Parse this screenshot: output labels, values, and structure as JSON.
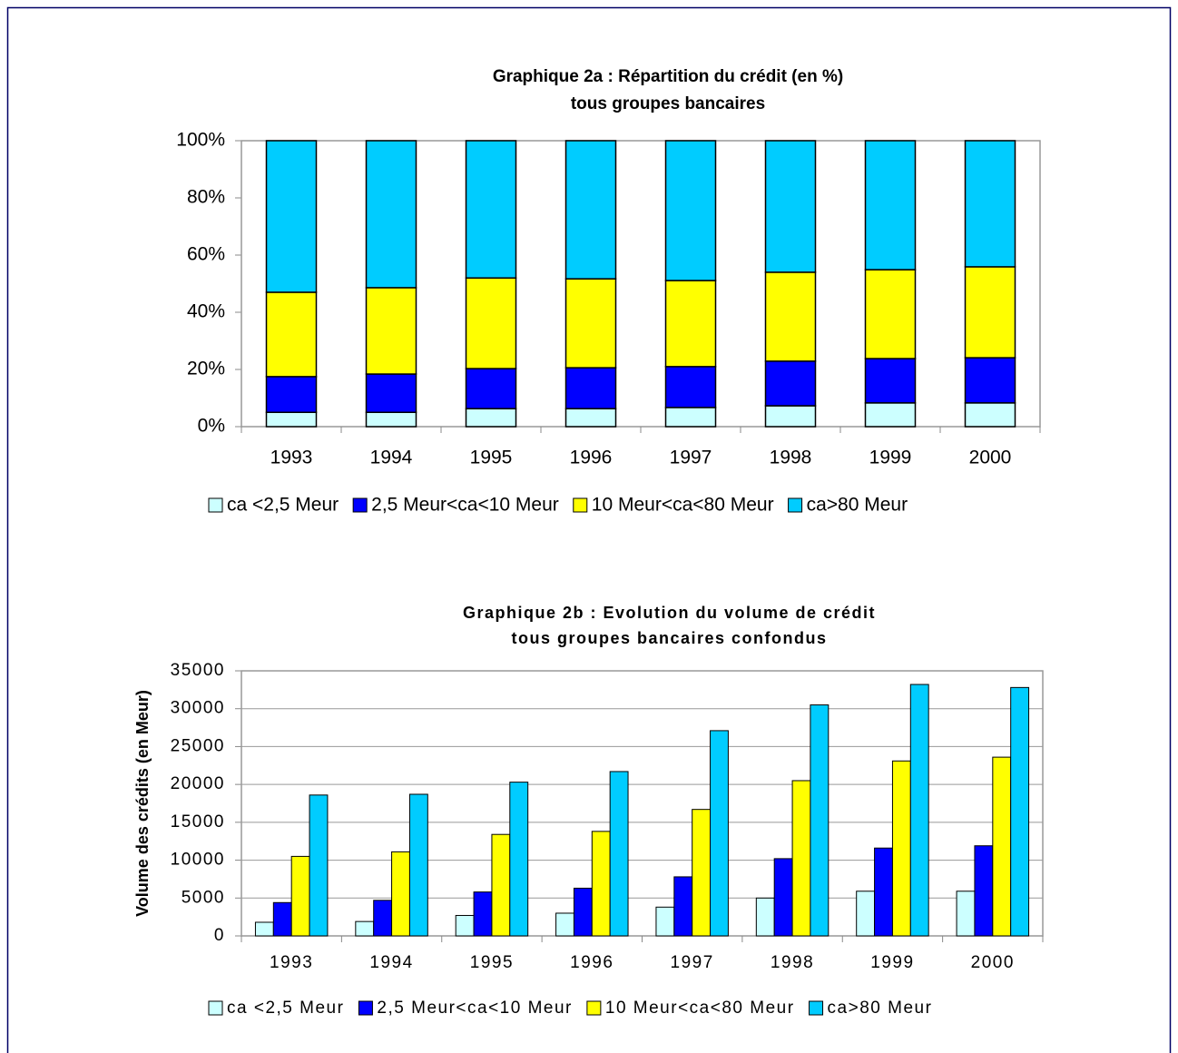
{
  "chart_data": [
    {
      "type": "bar",
      "stacked": true,
      "title": "Graphique 2a : Répartition du crédit (en %)",
      "subtitle": "tous groupes bancaires",
      "categories": [
        "1993",
        "1994",
        "1995",
        "1996",
        "1997",
        "1998",
        "1999",
        "2000"
      ],
      "series": [
        {
          "name": "ca <2,5 Meur",
          "color": "#ccffff",
          "values": [
            5,
            5,
            6.3,
            6.3,
            6.7,
            7.3,
            8.3,
            8.3
          ]
        },
        {
          "name": "2,5 Meur<ca<10 Meur",
          "color": "#0000ff",
          "values": [
            12.5,
            13.4,
            14,
            14.3,
            14.3,
            15.6,
            15.5,
            15.8
          ]
        },
        {
          "name": "10 Meur<ca<80 Meur",
          "color": "#ffff00",
          "values": [
            29.5,
            30.2,
            31.7,
            31.1,
            30.1,
            31.1,
            31.1,
            31.8
          ]
        },
        {
          "name": "ca>80 Meur",
          "color": "#00ccff",
          "values": [
            53,
            51.4,
            48,
            48.3,
            48.9,
            46,
            45.1,
            44.1
          ]
        }
      ],
      "ylim": [
        0,
        100
      ],
      "yticks": [
        {
          "value": 0,
          "label": "0%"
        },
        {
          "value": 20,
          "label": "20%"
        },
        {
          "value": 40,
          "label": "40%"
        },
        {
          "value": 60,
          "label": "60%"
        },
        {
          "value": 80,
          "label": "80%"
        },
        {
          "value": 100,
          "label": "100%"
        }
      ],
      "grid": false,
      "legend": "bottom"
    },
    {
      "type": "bar",
      "stacked": false,
      "title": "Graphique 2b : Evolution du volume de crédit",
      "subtitle": "tous groupes bancaires confondus",
      "y_label": "Volume des crédits (en Meur)",
      "categories": [
        "1993",
        "1994",
        "1995",
        "1996",
        "1997",
        "1998",
        "1999",
        "2000"
      ],
      "series": [
        {
          "name": "ca <2,5 Meur",
          "color": "#ccffff",
          "values": [
            1800,
            1900,
            2700,
            3000,
            3800,
            5000,
            5900,
            5900
          ]
        },
        {
          "name": "2,5 Meur<ca<10 Meur",
          "color": "#0000ff",
          "values": [
            4400,
            4700,
            5800,
            6300,
            7800,
            10200,
            11600,
            11900
          ]
        },
        {
          "name": "10 Meur<ca<80 Meur",
          "color": "#ffff00",
          "values": [
            10500,
            11100,
            13400,
            13800,
            16700,
            20500,
            23100,
            23600
          ]
        },
        {
          "name": "ca>80 Meur",
          "color": "#00ccff",
          "values": [
            18600,
            18700,
            20300,
            21700,
            27100,
            30500,
            33200,
            32800
          ]
        }
      ],
      "ylim": [
        0,
        35000
      ],
      "yticks": [
        0,
        5000,
        10000,
        15000,
        20000,
        25000,
        30000,
        35000
      ],
      "grid": true,
      "legend": "bottom"
    }
  ]
}
